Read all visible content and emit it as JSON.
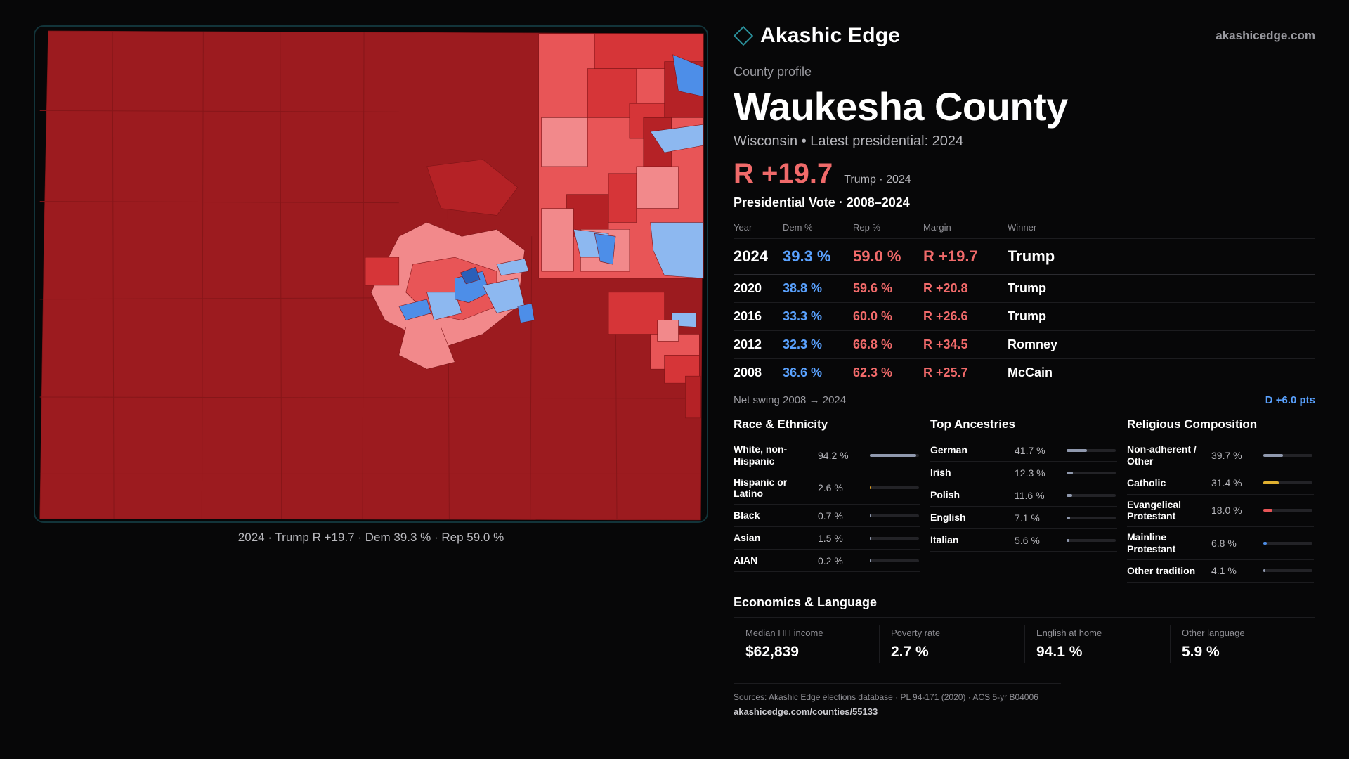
{
  "map": {
    "caption": "2024 · Trump R +19.7 · Dem 39.3 % · Rep 59.0 %",
    "colors": {
      "strong_rep": "#9c1b1f",
      "rep": "#b52226",
      "lean_rep": "#d63538",
      "tilt_rep": "#e85557",
      "light_rep": "#f2898b",
      "lean_dem": "#8db8f0",
      "dem": "#4d8ee8",
      "strong_dem": "#2b5fb8"
    }
  },
  "brand": {
    "name": "Akashic Edge",
    "site": "akashicedge.com",
    "icon": "diamond-logo-icon"
  },
  "profile": {
    "eyebrow": "County profile",
    "county": "Waukesha County",
    "subtitle": "Wisconsin • Latest presidential: 2024",
    "margin": "R +19.7",
    "margin_note": "Trump · 2024"
  },
  "votes": {
    "title": "Presidential Vote · 2008–2024",
    "headers": [
      "Year",
      "Dem %",
      "Rep %",
      "Margin",
      "Winner"
    ],
    "rows": [
      {
        "year": "2024",
        "dem": "39.3 %",
        "rep": "59.0 %",
        "margin": "R +19.7",
        "winner": "Trump"
      },
      {
        "year": "2020",
        "dem": "38.8 %",
        "rep": "59.6 %",
        "margin": "R +20.8",
        "winner": "Trump"
      },
      {
        "year": "2016",
        "dem": "33.3 %",
        "rep": "60.0 %",
        "margin": "R +26.6",
        "winner": "Trump"
      },
      {
        "year": "2012",
        "dem": "32.3 %",
        "rep": "66.8 %",
        "margin": "R +34.5",
        "winner": "Romney"
      },
      {
        "year": "2008",
        "dem": "36.6 %",
        "rep": "62.3 %",
        "margin": "R +25.7",
        "winner": "McCain"
      }
    ],
    "swing_label": "Net swing 2008 → 2024",
    "swing_value": "D +6.0 pts"
  },
  "race": {
    "title": "Race & Ethnicity",
    "rows": [
      {
        "label": "White, non-Hispanic",
        "value": "94.2 %",
        "pct": 94.2,
        "color": "#8f98ad"
      },
      {
        "label": "Hispanic or Latino",
        "value": "2.6 %",
        "pct": 2.6,
        "color": "#e0a020"
      },
      {
        "label": "Black",
        "value": "0.7 %",
        "pct": 0.7,
        "color": "#8f98ad"
      },
      {
        "label": "Asian",
        "value": "1.5 %",
        "pct": 1.5,
        "color": "#8f98ad"
      },
      {
        "label": "AIAN",
        "value": "0.2 %",
        "pct": 0.2,
        "color": "#8f98ad"
      }
    ]
  },
  "ancestry": {
    "title": "Top Ancestries",
    "rows": [
      {
        "label": "German",
        "value": "41.7 %",
        "pct": 41.7,
        "color": "#8f98ad"
      },
      {
        "label": "Irish",
        "value": "12.3 %",
        "pct": 12.3,
        "color": "#8f98ad"
      },
      {
        "label": "Polish",
        "value": "11.6 %",
        "pct": 11.6,
        "color": "#8f98ad"
      },
      {
        "label": "English",
        "value": "7.1 %",
        "pct": 7.1,
        "color": "#8f98ad"
      },
      {
        "label": "Italian",
        "value": "5.6 %",
        "pct": 5.6,
        "color": "#8f98ad"
      }
    ]
  },
  "religion": {
    "title": "Religious Composition",
    "rows": [
      {
        "label": "Non-adherent / Other",
        "value": "39.7 %",
        "pct": 39.7,
        "color": "#8f98ad"
      },
      {
        "label": "Catholic",
        "value": "31.4 %",
        "pct": 31.4,
        "color": "#e0b030"
      },
      {
        "label": "Evangelical Protestant",
        "value": "18.0 %",
        "pct": 18.0,
        "color": "#e85557"
      },
      {
        "label": "Mainline Protestant",
        "value": "6.8 %",
        "pct": 6.8,
        "color": "#4d8ee8"
      },
      {
        "label": "Other tradition",
        "value": "4.1 %",
        "pct": 4.1,
        "color": "#8f98ad"
      }
    ]
  },
  "economics": {
    "title": "Economics & Language",
    "cells": [
      {
        "label": "Median HH income",
        "value": "$62,839"
      },
      {
        "label": "Poverty rate",
        "value": "2.7 %"
      },
      {
        "label": "English at home",
        "value": "94.1 %"
      },
      {
        "label": "Other language",
        "value": "5.9 %"
      }
    ]
  },
  "footer": {
    "sources": "Sources: Akashic Edge elections database · PL 94-171 (2020) · ACS 5-yr B04006",
    "url": "akashicedge.com/counties/55133"
  }
}
